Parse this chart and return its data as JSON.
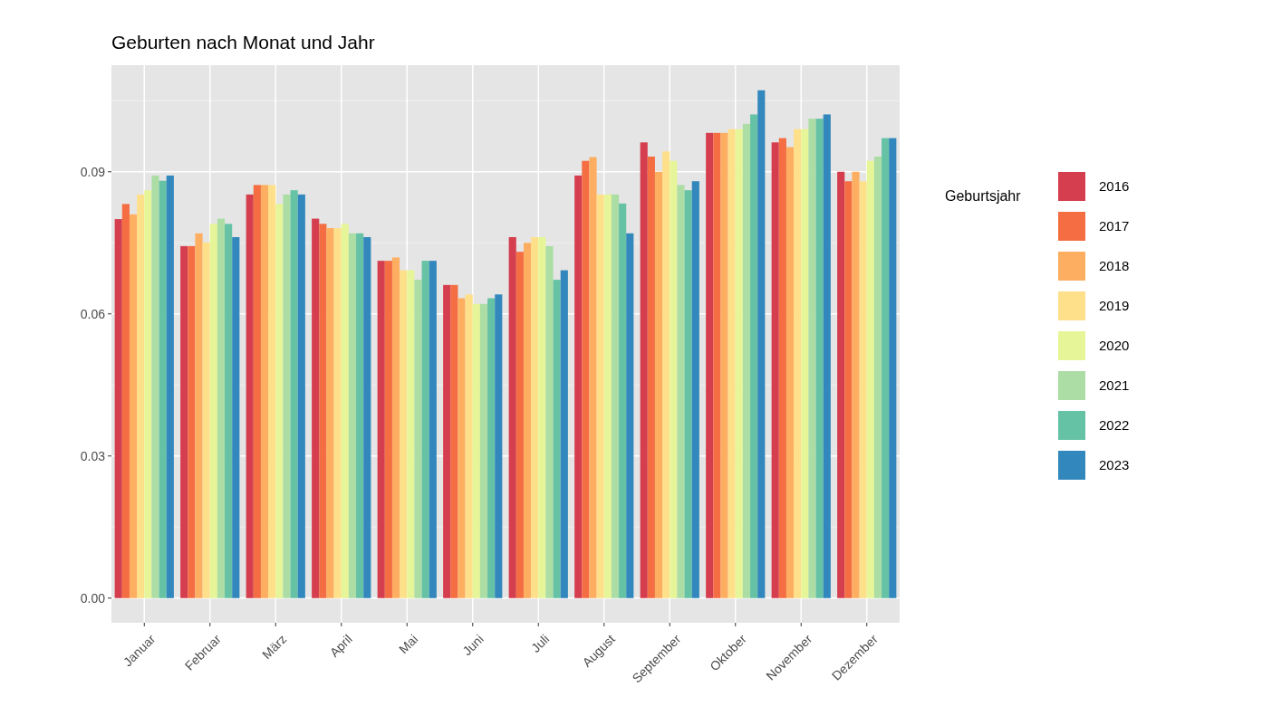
{
  "chart_data": {
    "type": "bar",
    "title": "Geburten nach Monat und Jahr",
    "legend_title": "Geburtsjahr",
    "categories": [
      "Januar",
      "Februar",
      "März",
      "April",
      "Mai",
      "Juni",
      "Juli",
      "August",
      "September",
      "Oktober",
      "November",
      "Dezember"
    ],
    "series": [
      {
        "name": "2016",
        "color": "#d53e4f",
        "values": [
          0.08,
          0.0743,
          0.0852,
          0.0801,
          0.0712,
          0.0661,
          0.0762,
          0.0892,
          0.0962,
          0.0982,
          0.0962,
          0.09
        ]
      },
      {
        "name": "2017",
        "color": "#f46d43",
        "values": [
          0.0832,
          0.0743,
          0.0872,
          0.079,
          0.0712,
          0.0661,
          0.0731,
          0.0923,
          0.0932,
          0.0982,
          0.0971,
          0.088
        ]
      },
      {
        "name": "2018",
        "color": "#fdae61",
        "values": [
          0.081,
          0.077,
          0.0872,
          0.0781,
          0.0719,
          0.0633,
          0.075,
          0.0931,
          0.09,
          0.0982,
          0.0952,
          0.09
        ]
      },
      {
        "name": "2019",
        "color": "#fee08b",
        "values": [
          0.0852,
          0.0751,
          0.0872,
          0.0781,
          0.0692,
          0.0641,
          0.0762,
          0.0852,
          0.0943,
          0.099,
          0.099,
          0.088
        ]
      },
      {
        "name": "2020",
        "color": "#e6f598",
        "values": [
          0.0861,
          0.079,
          0.0832,
          0.079,
          0.0692,
          0.0621,
          0.0762,
          0.0852,
          0.0923,
          0.099,
          0.099,
          0.0923
        ]
      },
      {
        "name": "2021",
        "color": "#abdda4",
        "values": [
          0.0892,
          0.0801,
          0.0852,
          0.077,
          0.0672,
          0.0621,
          0.0743,
          0.0852,
          0.0872,
          0.1001,
          0.1012,
          0.0932
        ]
      },
      {
        "name": "2022",
        "color": "#66c2a5",
        "values": [
          0.0881,
          0.079,
          0.0861,
          0.077,
          0.0712,
          0.0633,
          0.0672,
          0.0833,
          0.0861,
          0.1021,
          0.1012,
          0.0971
        ]
      },
      {
        "name": "2023",
        "color": "#3288bd",
        "values": [
          0.0892,
          0.0762,
          0.0852,
          0.0762,
          0.0712,
          0.0641,
          0.0692,
          0.077,
          0.088,
          0.1072,
          0.1021,
          0.0971
        ]
      }
    ],
    "ylim": [
      -0.0052,
      0.1125
    ],
    "yticks": [
      {
        "value": 0,
        "label": "0.00"
      },
      {
        "value": 0.03,
        "label": "0.03"
      },
      {
        "value": 0.06,
        "label": "0.06"
      },
      {
        "value": 0.09,
        "label": "0.09"
      }
    ],
    "grid": true,
    "legend": "right"
  }
}
